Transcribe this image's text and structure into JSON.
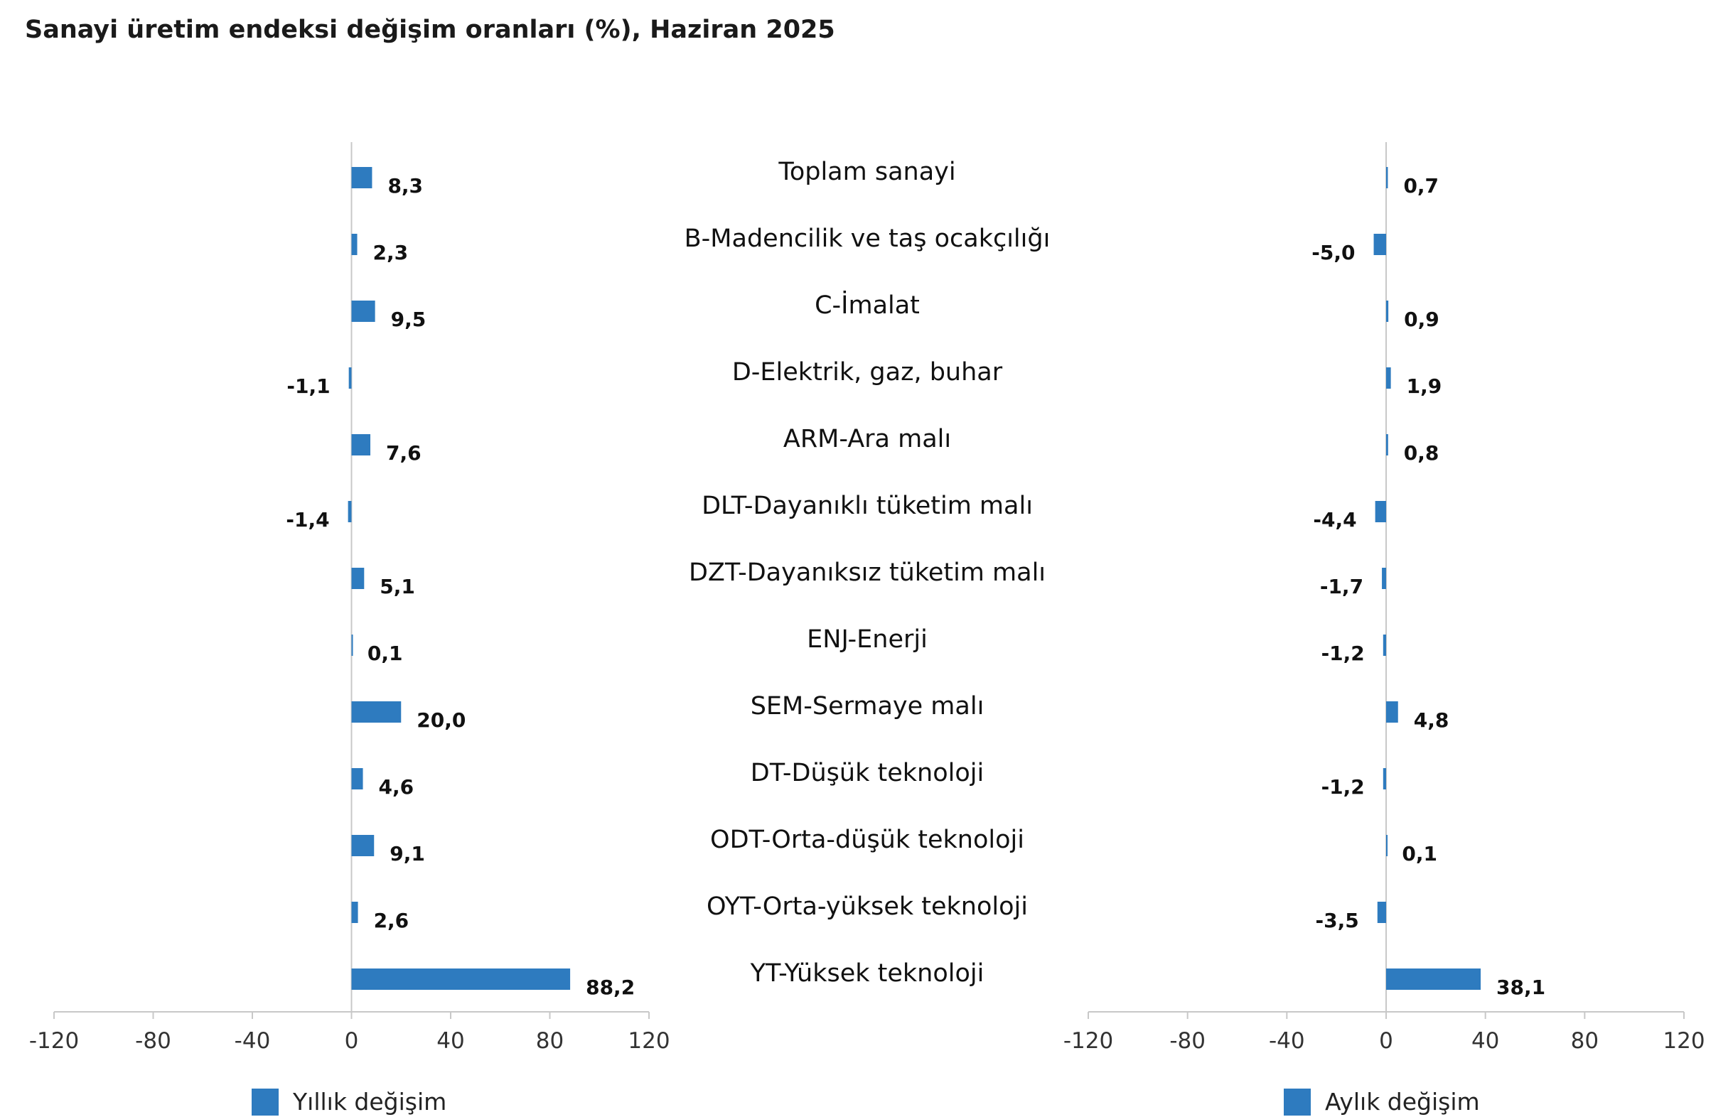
{
  "title": "Sanayi üretim endeksi değişim oranları (%), Haziran 2025",
  "colors": {
    "bar": "#2E7BBF",
    "axis": "#c8c8c8",
    "tick_text": "#333333",
    "label_text": "#111111"
  },
  "chart_data": [
    {
      "type": "bar",
      "orientation": "horizontal",
      "series": [
        {
          "name": "Yıllık değişim",
          "values": [
            8.3,
            2.3,
            9.5,
            -1.1,
            7.6,
            -1.4,
            5.1,
            0.1,
            20.0,
            4.6,
            9.1,
            2.6,
            88.2
          ],
          "labels": [
            "8,3",
            "2,3",
            "9,5",
            "-1,1",
            "7,6",
            "-1,4",
            "5,1",
            "0,1",
            "20,0",
            "4,6",
            "9,1",
            "2,6",
            "88,2"
          ]
        }
      ],
      "categories": [
        "Toplam sanayi",
        "B-Madencilik ve taş ocakçılığı",
        "C-İmalat",
        "D-Elektrik, gaz, buhar",
        "ARM-Ara malı",
        "DLT-Dayanıklı tüketim malı",
        "DZT-Dayanıksız tüketim malı",
        "ENJ-Enerji",
        "SEM-Sermaye malı",
        "DT-Düşük teknoloji",
        "ODT-Orta-düşük teknoloji",
        "OYT-Orta-yüksek teknoloji",
        "YT-Yüksek teknoloji"
      ],
      "xlim": [
        -120,
        120
      ],
      "xticks": [
        "-120",
        "-80",
        "-40",
        "0",
        "40",
        "80",
        "120"
      ],
      "legend": "bottom"
    },
    {
      "type": "bar",
      "orientation": "horizontal",
      "series": [
        {
          "name": "Aylık değişim",
          "values": [
            0.7,
            -5.0,
            0.9,
            1.9,
            0.8,
            -4.4,
            -1.7,
            -1.2,
            4.8,
            -1.2,
            0.1,
            -3.5,
            38.1
          ],
          "labels": [
            "0,7",
            "-5,0",
            "0,9",
            "1,9",
            "0,8",
            "-4,4",
            "-1,7",
            "-1,2",
            "4,8",
            "-1,2",
            "0,1",
            "-3,5",
            "38,1"
          ]
        }
      ],
      "categories": [
        "Toplam sanayi",
        "B-Madencilik ve taş ocakçılığı",
        "C-İmalat",
        "D-Elektrik, gaz, buhar",
        "ARM-Ara malı",
        "DLT-Dayanıklı tüketim malı",
        "DZT-Dayanıksız tüketim malı",
        "ENJ-Enerji",
        "SEM-Sermaye malı",
        "DT-Düşük teknoloji",
        "ODT-Orta-düşük teknoloji",
        "OYT-Orta-yüksek teknoloji",
        "YT-Yüksek teknoloji"
      ],
      "xlim": [
        -120,
        120
      ],
      "xticks": [
        "-120",
        "-80",
        "-40",
        "0",
        "40",
        "80",
        "120"
      ],
      "legend": "bottom"
    }
  ]
}
